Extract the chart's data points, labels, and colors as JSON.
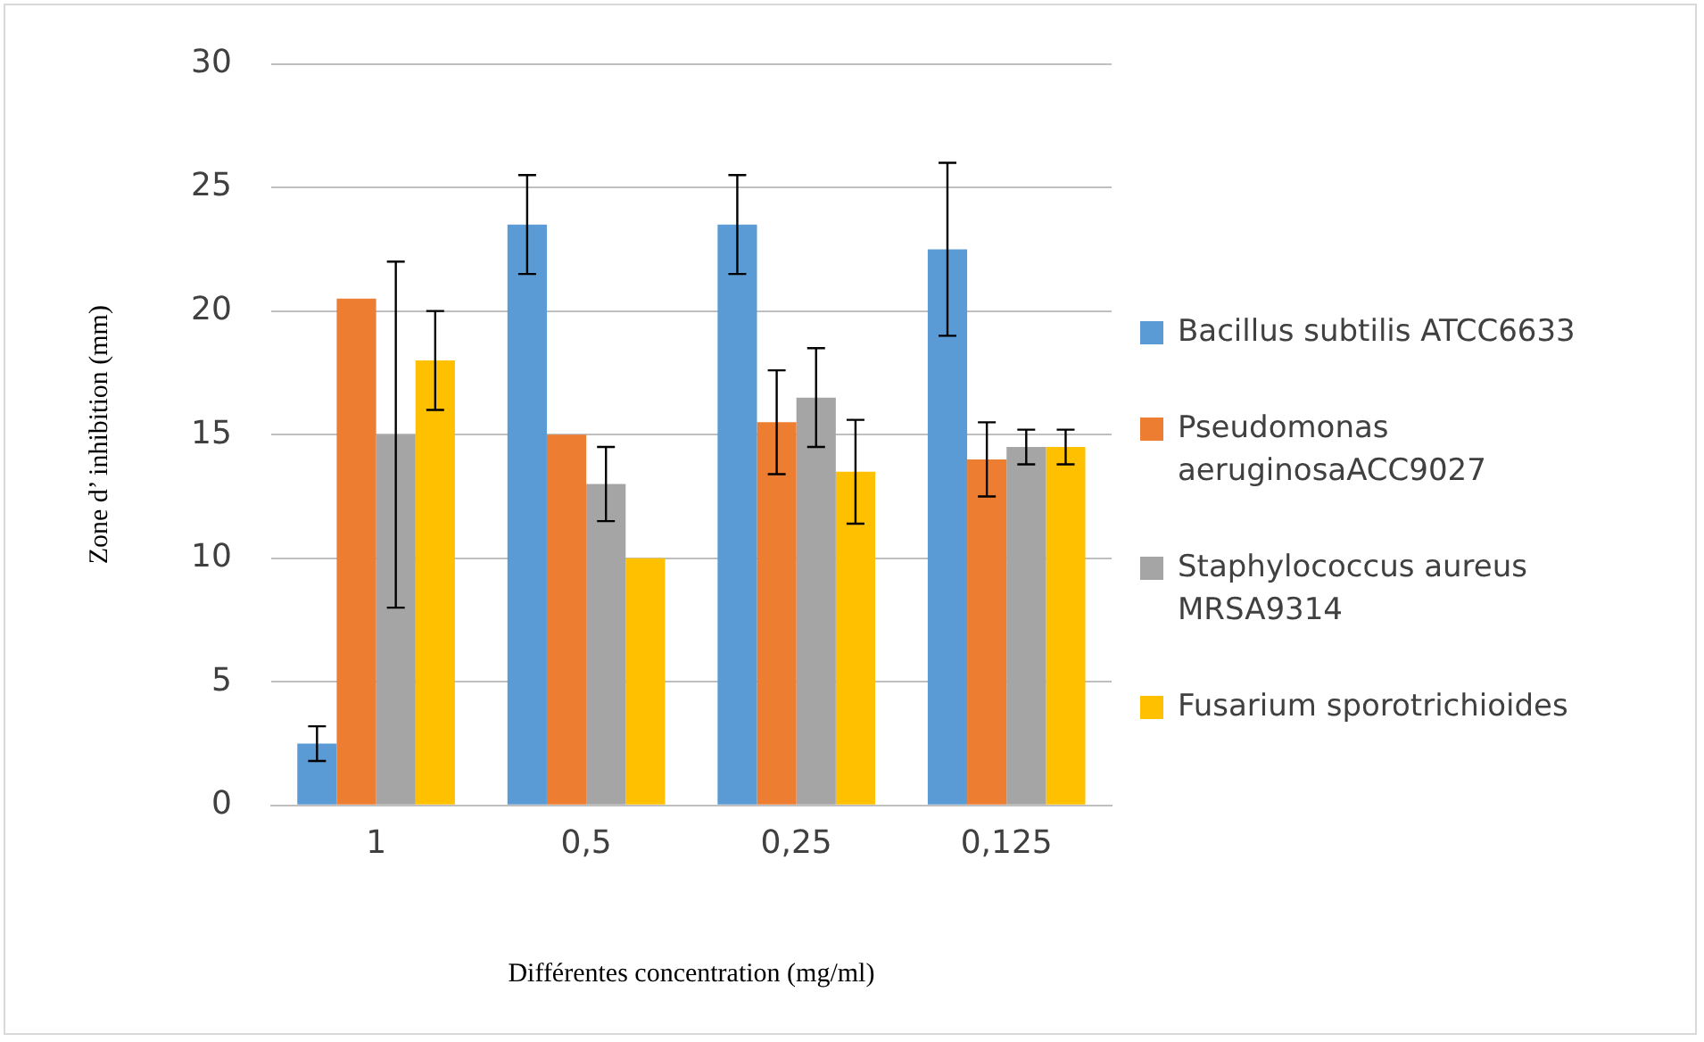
{
  "chart_data": {
    "type": "bar",
    "xlabel": "Différentes concentration (mg/ml)",
    "ylabel": "Zone d’ inhibition (mm)",
    "categories": [
      "1",
      "0,5",
      "0,25",
      "0,125"
    ],
    "series": [
      {
        "name": "Bacillus subtilis ATCC6633",
        "color": "#5b9bd5",
        "values": [
          2.5,
          23.5,
          23.5,
          22.5
        ],
        "errors": [
          0.7,
          2,
          2,
          3.5
        ]
      },
      {
        "name": "Pseudomonas aeruginosaACC9027",
        "color": "#ed7d31",
        "values": [
          20.5,
          15,
          15.5,
          14
        ],
        "errors": [
          null,
          null,
          2.1,
          1.5
        ]
      },
      {
        "name": "Staphylococcus aureus MRSA9314",
        "color": "#a5a5a5",
        "values": [
          15,
          13,
          16.5,
          14.5
        ],
        "errors": [
          7,
          1.5,
          2,
          0.7
        ]
      },
      {
        "name": "Fusarium sporotrichioides",
        "color": "#ffc000",
        "values": [
          18,
          10,
          13.5,
          14.5
        ],
        "errors": [
          2,
          null,
          2.1,
          0.7
        ]
      }
    ],
    "ylim": [
      0,
      30
    ],
    "yticks": [
      0,
      5,
      10,
      15,
      20,
      25,
      30
    ],
    "grid": "y",
    "legend": "right"
  }
}
